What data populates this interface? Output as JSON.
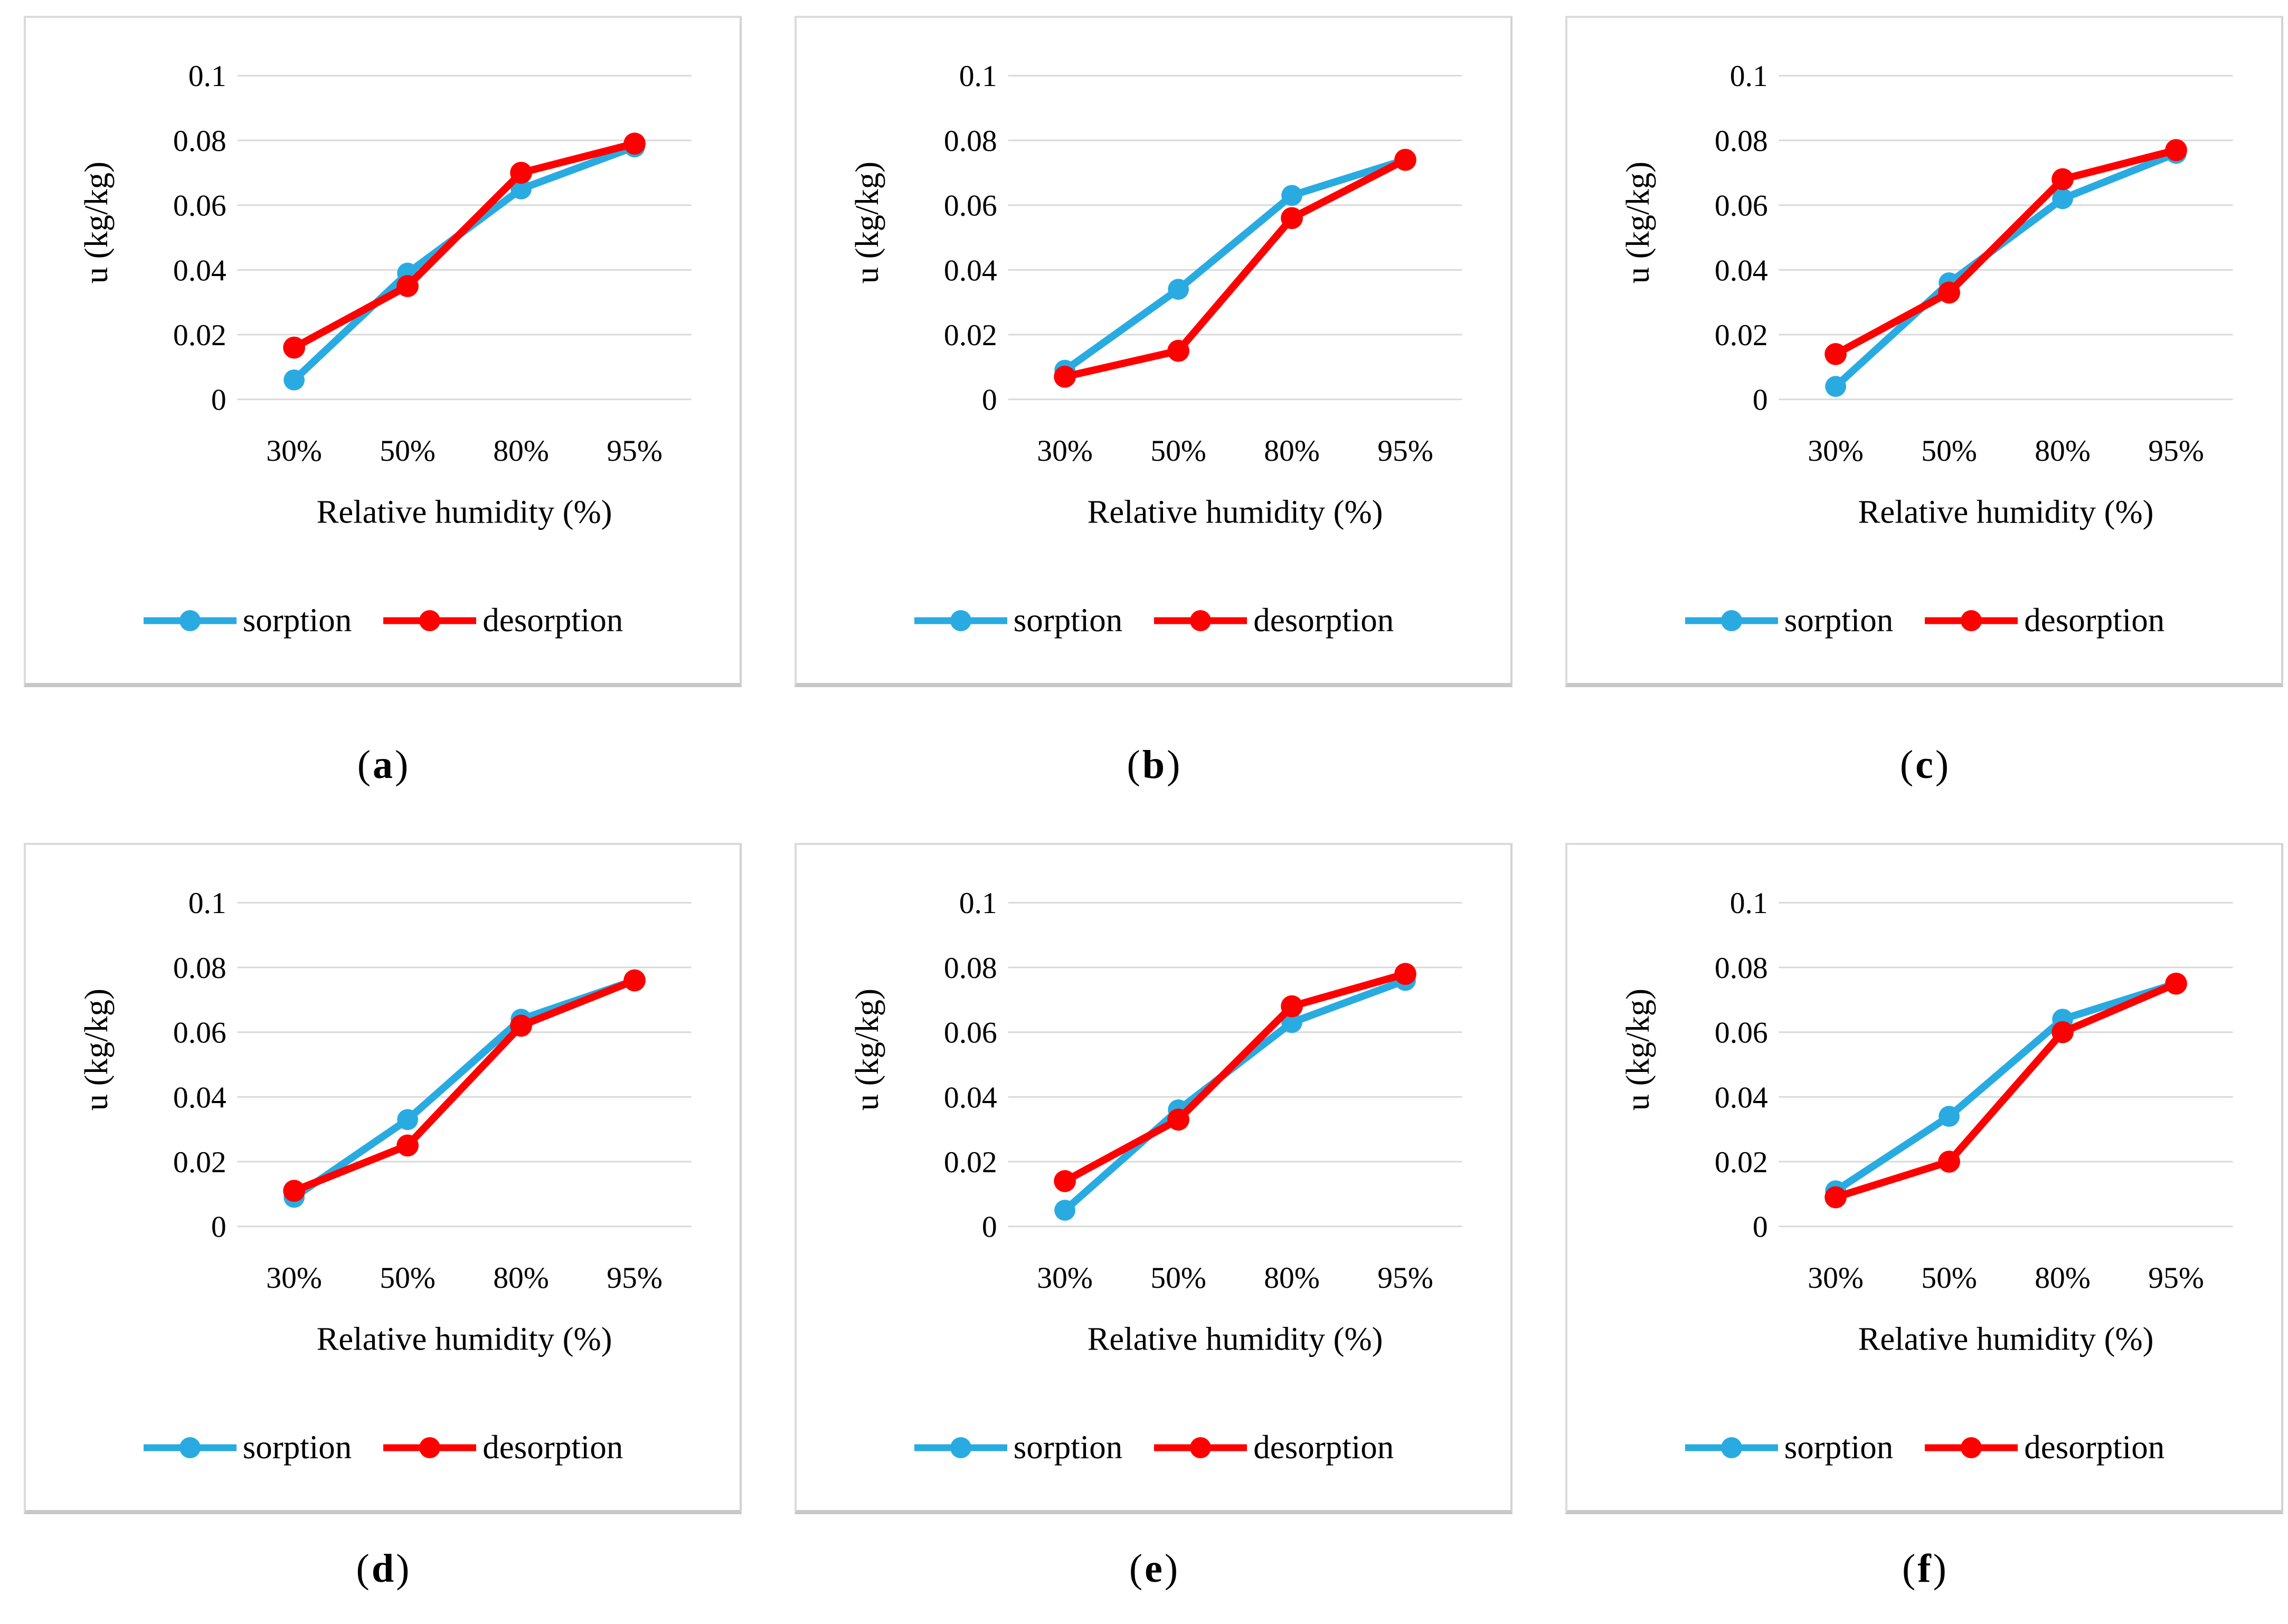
{
  "figure": {
    "ylabel": "u (kg/kg)",
    "xlabel": "Relative humidity (%)",
    "categories": [
      "30%",
      "50%",
      "80%",
      "95%"
    ],
    "yticks": [
      {
        "v": 0,
        "label": "0"
      },
      {
        "v": 0.02,
        "label": "0.02"
      },
      {
        "v": 0.04,
        "label": "0.04"
      },
      {
        "v": 0.06,
        "label": "0.06"
      },
      {
        "v": 0.08,
        "label": "0.08"
      },
      {
        "v": 0.1,
        "label": "0.1"
      }
    ],
    "legend": [
      {
        "label": "sorption",
        "color": "#29ABE2"
      },
      {
        "label": "desorption",
        "color": "#FF0000"
      }
    ],
    "grid_color": "#D9D9D9",
    "caption_open": "(",
    "caption_close": ")"
  },
  "chart_data": [
    {
      "type": "line",
      "title": "(a)",
      "letter": "a",
      "xlabel": "Relative humidity (%)",
      "ylabel": "u (kg/kg)",
      "categories": [
        "30%",
        "50%",
        "80%",
        "95%"
      ],
      "ylim": [
        0,
        0.1
      ],
      "grid": true,
      "legend_position": "bottom",
      "series": [
        {
          "name": "sorption",
          "values": [
            0.006,
            0.039,
            0.065,
            0.078
          ]
        },
        {
          "name": "desorption",
          "values": [
            0.016,
            0.035,
            0.07,
            0.079
          ]
        }
      ]
    },
    {
      "type": "line",
      "title": "(b)",
      "letter": "b",
      "xlabel": "Relative humidity (%)",
      "ylabel": "u (kg/kg)",
      "categories": [
        "30%",
        "50%",
        "80%",
        "95%"
      ],
      "ylim": [
        0,
        0.1
      ],
      "grid": true,
      "legend_position": "bottom",
      "series": [
        {
          "name": "sorption",
          "values": [
            0.009,
            0.034,
            0.063,
            0.074
          ]
        },
        {
          "name": "desorption",
          "values": [
            0.007,
            0.015,
            0.056,
            0.074
          ]
        }
      ]
    },
    {
      "type": "line",
      "title": "(c)",
      "letter": "c",
      "xlabel": "Relative humidity (%)",
      "ylabel": "u (kg/kg)",
      "categories": [
        "30%",
        "50%",
        "80%",
        "95%"
      ],
      "ylim": [
        0,
        0.1
      ],
      "grid": true,
      "legend_position": "bottom",
      "series": [
        {
          "name": "sorption",
          "values": [
            0.004,
            0.036,
            0.062,
            0.076
          ]
        },
        {
          "name": "desorption",
          "values": [
            0.014,
            0.033,
            0.068,
            0.077
          ]
        }
      ]
    },
    {
      "type": "line",
      "title": "(d)",
      "letter": "d",
      "xlabel": "Relative humidity (%)",
      "ylabel": "u (kg/kg)",
      "categories": [
        "30%",
        "50%",
        "80%",
        "95%"
      ],
      "ylim": [
        0,
        0.1
      ],
      "grid": true,
      "legend_position": "bottom",
      "series": [
        {
          "name": "sorption",
          "values": [
            0.009,
            0.033,
            0.064,
            0.076
          ]
        },
        {
          "name": "desorption",
          "values": [
            0.011,
            0.025,
            0.062,
            0.076
          ]
        }
      ]
    },
    {
      "type": "line",
      "title": "(e)",
      "letter": "e",
      "xlabel": "Relative humidity (%)",
      "ylabel": "u (kg/kg)",
      "categories": [
        "30%",
        "50%",
        "80%",
        "95%"
      ],
      "ylim": [
        0,
        0.1
      ],
      "grid": true,
      "legend_position": "bottom",
      "series": [
        {
          "name": "sorption",
          "values": [
            0.005,
            0.036,
            0.063,
            0.076
          ]
        },
        {
          "name": "desorption",
          "values": [
            0.014,
            0.033,
            0.068,
            0.078
          ]
        }
      ]
    },
    {
      "type": "line",
      "title": "(f)",
      "letter": "f",
      "xlabel": "Relative humidity (%)",
      "ylabel": "u (kg/kg)",
      "categories": [
        "30%",
        "50%",
        "80%",
        "95%"
      ],
      "ylim": [
        0,
        0.1
      ],
      "grid": true,
      "legend_position": "bottom",
      "series": [
        {
          "name": "sorption",
          "values": [
            0.011,
            0.034,
            0.064,
            0.075
          ]
        },
        {
          "name": "desorption",
          "values": [
            0.009,
            0.02,
            0.06,
            0.075
          ]
        }
      ]
    }
  ]
}
